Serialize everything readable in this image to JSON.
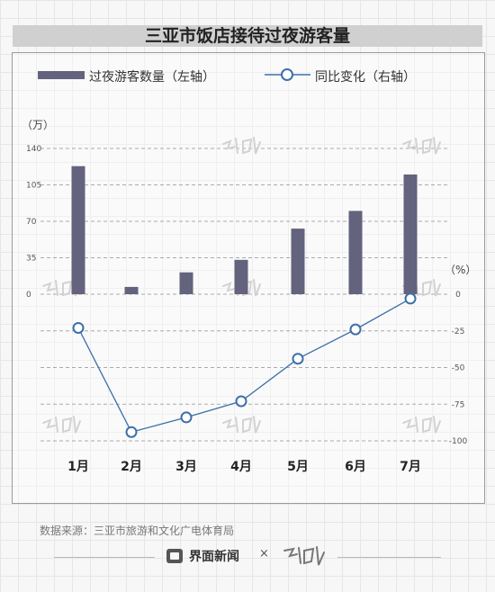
{
  "chart_data": {
    "type": "bar",
    "title": "三亚市饭店接待过夜游客量",
    "categories": [
      "1月",
      "2月",
      "3月",
      "4月",
      "5月",
      "6月",
      "7月"
    ],
    "series": [
      {
        "name": "过夜游客数量（左轴）",
        "type": "bar",
        "axis": "left",
        "values": [
          123,
          7,
          21,
          33,
          63,
          80,
          115
        ],
        "color": "#63637e"
      },
      {
        "name": "同比变化（右轴）",
        "type": "line",
        "axis": "right",
        "values": [
          -23,
          -94,
          -84,
          -73,
          -44,
          -24,
          -3
        ],
        "color": "#3d6fa8"
      }
    ],
    "left_axis": {
      "unit": "（万）",
      "ylim": [
        0,
        140
      ],
      "ticks": [
        "0",
        "35",
        "70",
        "105",
        "140"
      ]
    },
    "right_axis": {
      "unit": "（%）",
      "ylim": [
        -100,
        0
      ],
      "ticks": [
        "0",
        "-25",
        "-50",
        "-75",
        "-100"
      ]
    },
    "grid": "dashed-horizontal"
  },
  "source": "数据来源：三亚市旅游和文化广电体育局",
  "footer": {
    "brand": "界面新闻",
    "times": "×"
  },
  "colors": {
    "bar": "#63637e",
    "line": "#3d6fa8",
    "marker_fill": "#ffffff",
    "grid": "#aaaaaa",
    "title_bg": "#d0d0d0"
  }
}
